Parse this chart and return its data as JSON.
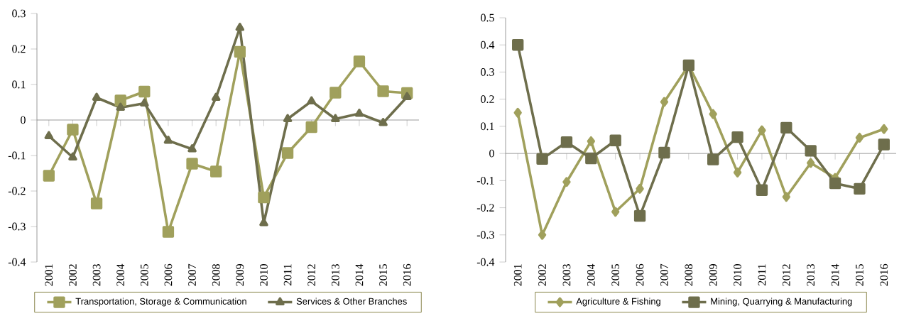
{
  "chart_data": [
    {
      "type": "line",
      "categories": [
        "2001",
        "2002",
        "2003",
        "2004",
        "2005",
        "2006",
        "2007",
        "2008",
        "2009",
        "2010",
        "2011",
        "2012",
        "2013",
        "2014",
        "2015",
        "2016"
      ],
      "series": [
        {
          "name": "Transportation, Storage & Communication",
          "color": "#a0a05c",
          "marker": "square",
          "values": [
            -0.157,
            -0.027,
            -0.235,
            0.055,
            0.08,
            -0.315,
            -0.123,
            -0.145,
            0.192,
            -0.218,
            -0.093,
            -0.02,
            0.077,
            0.165,
            0.081,
            0.076
          ]
        },
        {
          "name": "Services & Other Branches",
          "color": "#6e6e4c",
          "marker": "triangle",
          "values": [
            -0.045,
            -0.105,
            0.063,
            0.035,
            0.047,
            -0.058,
            -0.082,
            0.063,
            0.26,
            -0.29,
            0.003,
            0.053,
            0.003,
            0.018,
            -0.008,
            0.065
          ]
        }
      ],
      "ylim": [
        -0.4,
        0.3
      ],
      "yticks": [
        -0.4,
        -0.3,
        -0.2,
        -0.1,
        0,
        0.1,
        0.2,
        0.3
      ],
      "legend": "bottom"
    },
    {
      "type": "line",
      "categories": [
        "2001",
        "2002",
        "2003",
        "2004",
        "2005",
        "2006",
        "2007",
        "2008",
        "2009",
        "2010",
        "2011",
        "2012",
        "2013",
        "2014",
        "2015",
        "2016"
      ],
      "series": [
        {
          "name": "Agriculture & Fishing",
          "color": "#a0a05c",
          "marker": "diamond",
          "values": [
            0.15,
            -0.3,
            -0.105,
            0.045,
            -0.215,
            -0.13,
            0.19,
            0.325,
            0.145,
            -0.07,
            0.085,
            -0.16,
            -0.035,
            -0.09,
            0.058,
            0.09
          ]
        },
        {
          "name": "Mining, Quarrying & Manufacturing",
          "color": "#6e6e4c",
          "marker": "square",
          "values": [
            0.4,
            -0.02,
            0.042,
            -0.018,
            0.048,
            -0.23,
            0.003,
            0.325,
            -0.022,
            0.06,
            -0.135,
            0.095,
            0.01,
            -0.11,
            -0.13,
            0.033
          ]
        }
      ],
      "ylim": [
        -0.4,
        0.5
      ],
      "yticks": [
        -0.4,
        -0.3,
        -0.2,
        -0.1,
        0,
        0.1,
        0.2,
        0.3,
        0.4,
        0.5
      ],
      "legend": "bottom"
    }
  ]
}
